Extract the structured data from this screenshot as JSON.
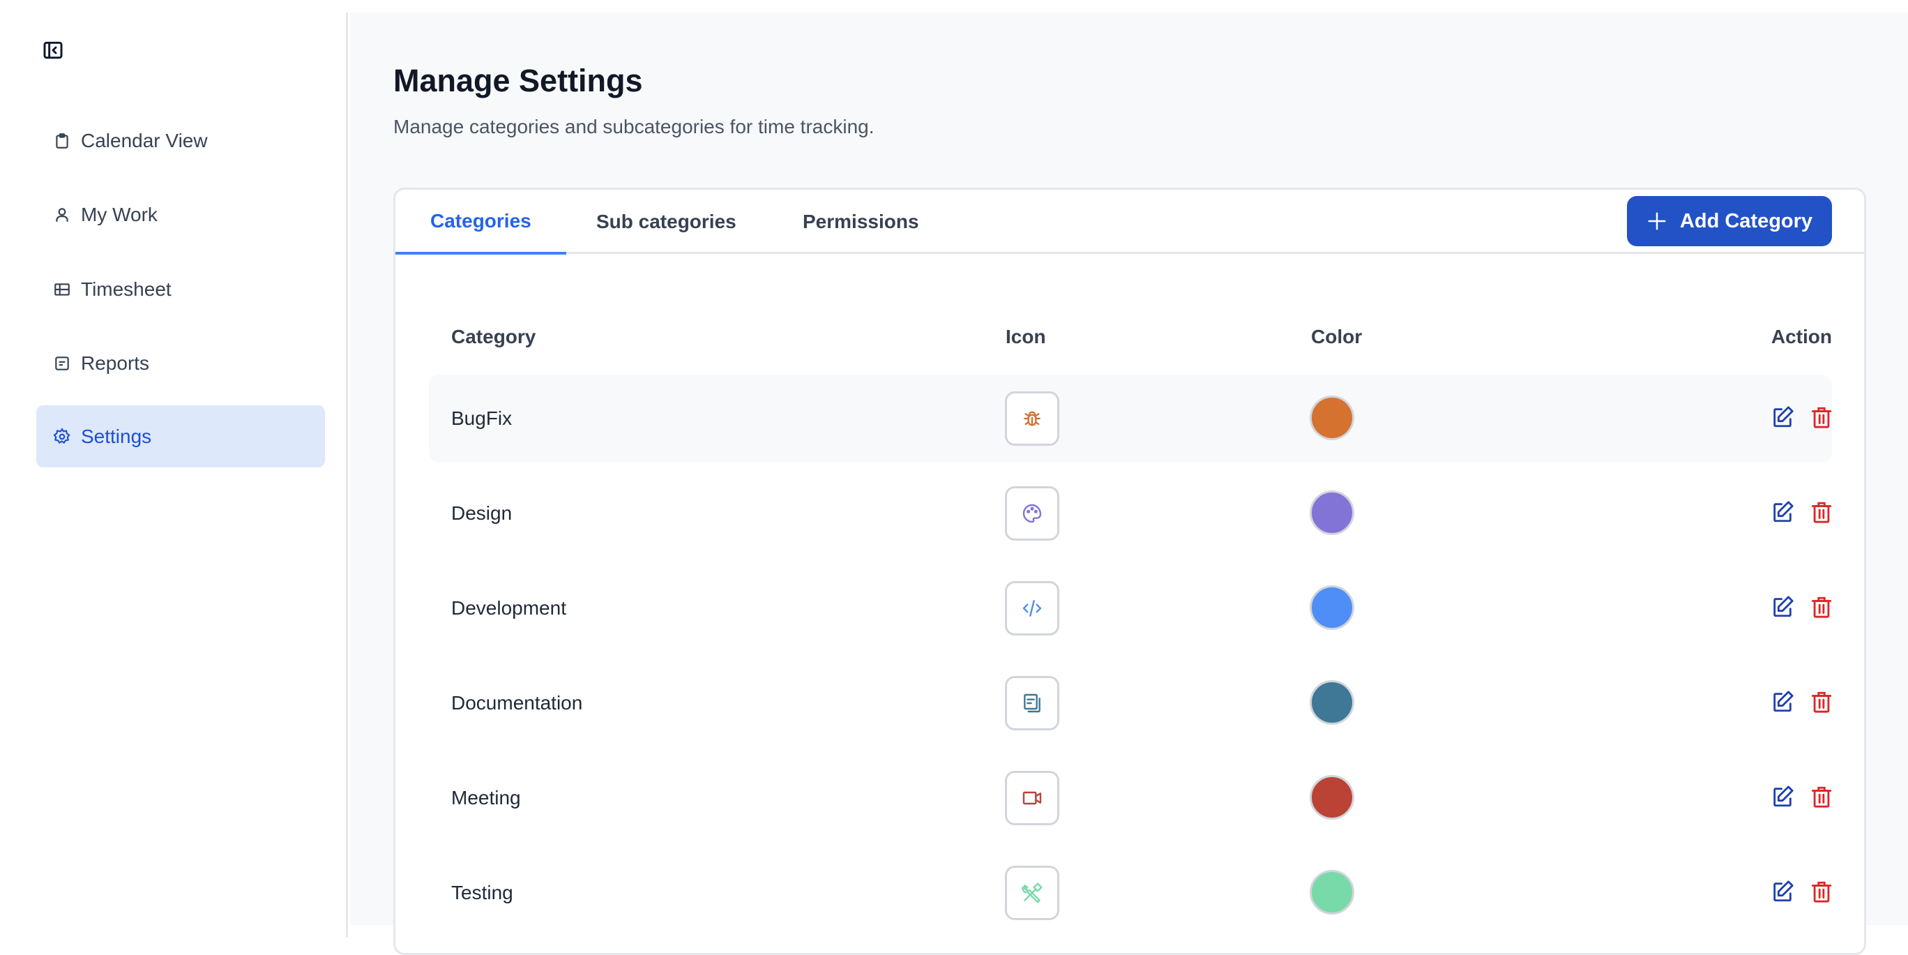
{
  "sidebar": {
    "collapse_icon": "panel-left-collapse-icon",
    "items": [
      {
        "label": "Calendar View",
        "icon": "clipboard-icon",
        "active": false
      },
      {
        "label": "My Work",
        "icon": "user-icon",
        "active": false
      },
      {
        "label": "Timesheet",
        "icon": "table-icon",
        "active": false
      },
      {
        "label": "Reports",
        "icon": "document-icon",
        "active": false
      },
      {
        "label": "Settings",
        "icon": "gear-icon",
        "active": true
      }
    ]
  },
  "page": {
    "title": "Manage Settings",
    "subtitle": "Manage categories and subcategories for time tracking."
  },
  "tabs": [
    {
      "label": "Categories",
      "active": true
    },
    {
      "label": "Sub categories",
      "active": false
    },
    {
      "label": "Permissions",
      "active": false
    }
  ],
  "add_button": {
    "label": "Add Category",
    "icon": "plus-icon",
    "color": "#2252c5"
  },
  "table": {
    "headers": [
      "Category",
      "Icon",
      "Color",
      "Action"
    ],
    "rows": [
      {
        "name": "BugFix",
        "icon": "bug-icon",
        "color": "#d57230"
      },
      {
        "name": "Design",
        "icon": "palette-icon",
        "color": "#8274d6"
      },
      {
        "name": "Development",
        "icon": "code-icon",
        "color": "#4f8ef7"
      },
      {
        "name": "Documentation",
        "icon": "documents-icon",
        "color": "#3f7896"
      },
      {
        "name": "Meeting",
        "icon": "video-icon",
        "color": "#bb4336"
      },
      {
        "name": "Testing",
        "icon": "tools-icon",
        "color": "#78daa8"
      }
    ]
  },
  "colors": {
    "accent": "#2563eb",
    "edit": "#1e40af",
    "delete": "#dc2626",
    "active_bg": "#dde8fa"
  }
}
